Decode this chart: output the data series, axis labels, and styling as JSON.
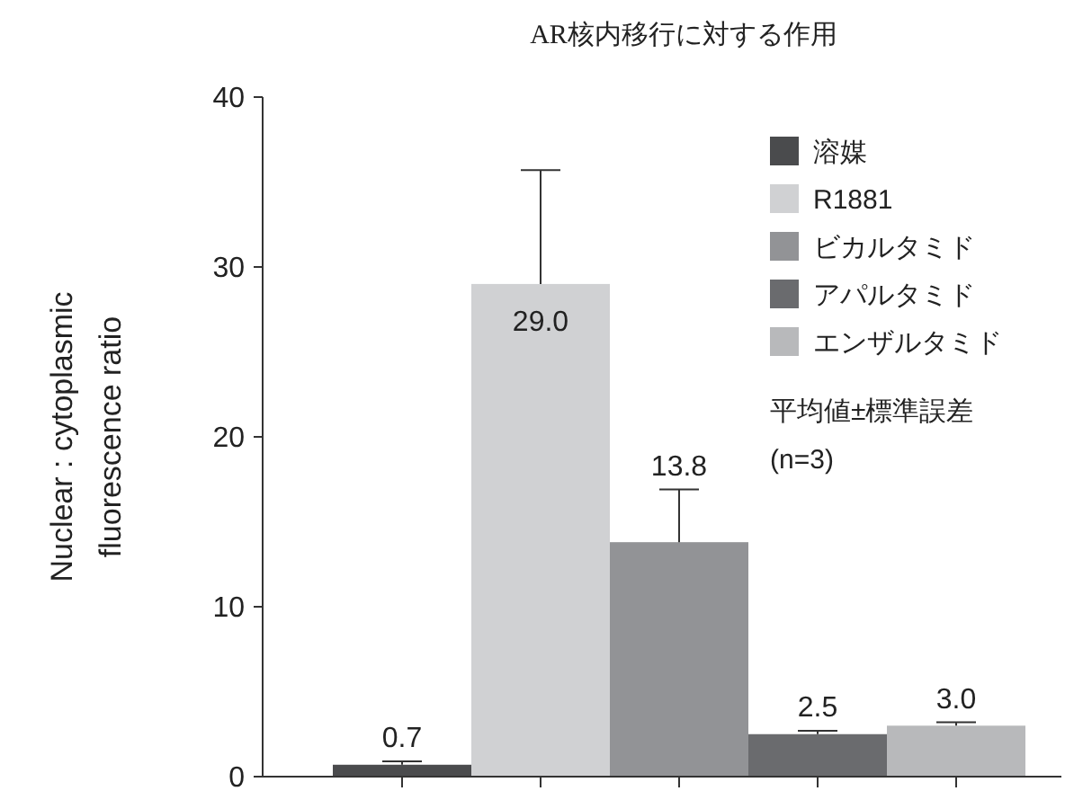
{
  "chart_data": {
    "type": "bar",
    "title": "AR核内移行に対する作用",
    "ylabel": "Nuclear : cytoplasmic\nfluorescence ratio",
    "categories": [
      null,
      null,
      null,
      null,
      null
    ],
    "series": [
      {
        "name": "溶媒",
        "color": "#4a4b4d",
        "values": [
          0.7,
          null,
          null,
          null,
          null
        ],
        "errors": [
          [
            0.7,
            0.9
          ],
          null,
          null,
          null,
          null
        ],
        "value_labels": [
          "0.7",
          null,
          null,
          null,
          null
        ]
      },
      {
        "name": "R1881",
        "color": "#d0d1d3",
        "values": [
          null,
          29.0,
          null,
          null,
          null
        ],
        "errors": [
          null,
          [
            29.0,
            35.7
          ],
          null,
          null,
          null
        ],
        "value_labels": [
          null,
          "29.0",
          null,
          null,
          null
        ]
      },
      {
        "name": "ビカルタミド",
        "color": "#929396",
        "values": [
          null,
          null,
          13.8,
          null,
          null
        ],
        "errors": [
          null,
          null,
          [
            13.8,
            16.9
          ],
          null,
          null
        ],
        "value_labels": [
          null,
          null,
          "13.8",
          null,
          null
        ]
      },
      {
        "name": "アパルタミド",
        "color": "#6a6b6e",
        "values": [
          null,
          null,
          null,
          2.5,
          null
        ],
        "errors": [
          null,
          null,
          null,
          [
            2.5,
            2.7
          ],
          null
        ],
        "value_labels": [
          null,
          null,
          null,
          "2.5",
          null
        ]
      },
      {
        "name": "エンザルタミド",
        "color": "#b8b9bb",
        "values": [
          null,
          null,
          null,
          null,
          3.0
        ],
        "errors": [
          null,
          null,
          null,
          null,
          [
            3.0,
            3.2
          ]
        ],
        "value_labels": [
          null,
          null,
          null,
          null,
          "3.0"
        ]
      }
    ],
    "ylim": [
      0,
      40
    ],
    "yticks": [
      0,
      10,
      20,
      30,
      40
    ],
    "legend": "top right",
    "annotations": [
      "平均値±標準誤差",
      "(n=3)"
    ]
  }
}
